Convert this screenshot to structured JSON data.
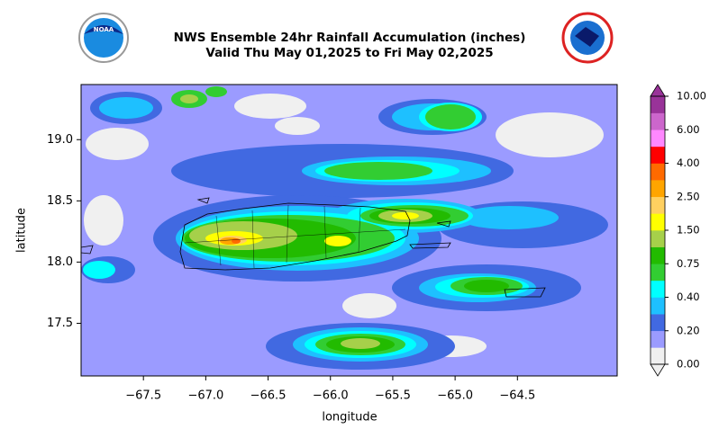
{
  "chart_data": {
    "type": "map",
    "title": "NWS Ensemble 24hr Rainfall Accumulation (inches)",
    "subtitle": "Valid Thu May 01,2025 to Fri May 02,2025",
    "logo_text": "NOAA",
    "x_label": "longitude",
    "y_label": "latitude",
    "xlim": [
      -68.0,
      -63.7
    ],
    "ylim": [
      17.07,
      19.45
    ],
    "xticks": [
      {
        "value": -67.5,
        "label": "−67.5"
      },
      {
        "value": -67.0,
        "label": "−67.0"
      },
      {
        "value": -66.5,
        "label": "−66.5"
      },
      {
        "value": -66.0,
        "label": "−66.0"
      },
      {
        "value": -65.5,
        "label": "−65.5"
      },
      {
        "value": -65.0,
        "label": "−65.0"
      },
      {
        "value": -64.5,
        "label": "−64.5"
      }
    ],
    "yticks": [
      {
        "value": 17.5,
        "label": "17.5"
      },
      {
        "value": 18.0,
        "label": "18.0"
      },
      {
        "value": 18.5,
        "label": "18.5"
      },
      {
        "value": 19.0,
        "label": "19.0"
      }
    ],
    "colorbar": {
      "levels": [
        0,
        0.1,
        0.2,
        0.3,
        0.4,
        0.5,
        0.75,
        1.0,
        1.5,
        2.0,
        2.5,
        3.0,
        4.0,
        5.0,
        6.0,
        8.0,
        10.0
      ],
      "colors": [
        "#f0f0f0",
        "#9b9bff",
        "#4169e1",
        "#1ec0ff",
        "#00ffff",
        "#32cd32",
        "#22bb00",
        "#a6d04a",
        "#ffff00",
        "#ffd060",
        "#ffa500",
        "#ff6a00",
        "#ff0000",
        "#ff88ff",
        "#cc66cc",
        "#993399"
      ],
      "ticks": [
        {
          "value": 0,
          "label": "0.00"
        },
        {
          "value": 0.2,
          "label": "0.20"
        },
        {
          "value": 0.4,
          "label": "0.40"
        },
        {
          "value": 0.75,
          "label": "0.75"
        },
        {
          "value": 1.5,
          "label": "1.50"
        },
        {
          "value": 2.5,
          "label": "2.50"
        },
        {
          "value": 4.0,
          "label": "4.00"
        },
        {
          "value": 6.0,
          "label": "6.00"
        },
        {
          "value": 10.0,
          "label": "10.00"
        }
      ]
    }
  }
}
